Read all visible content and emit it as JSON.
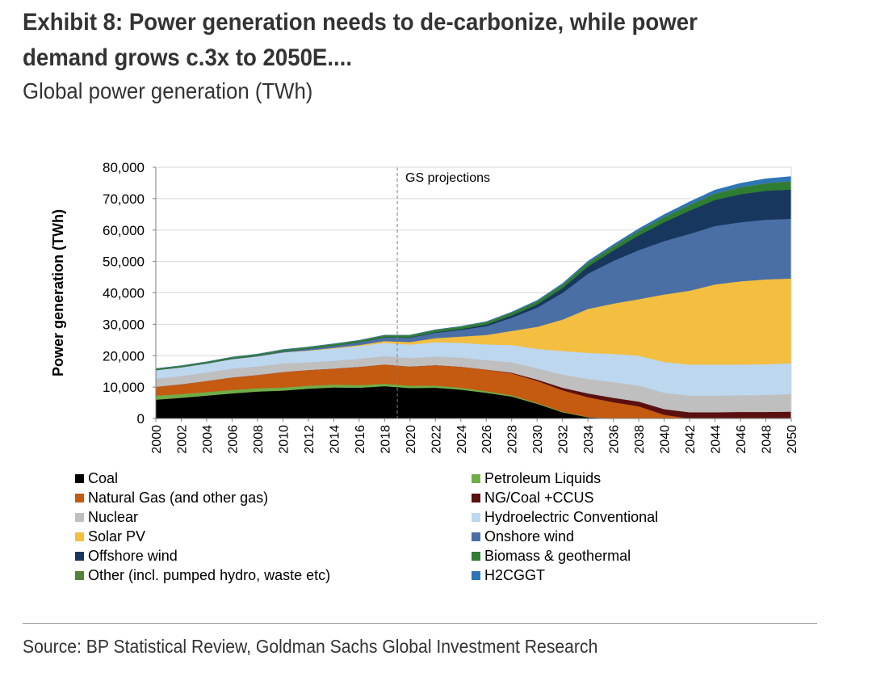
{
  "exhibit": {
    "title": "Exhibit 8: Power generation needs to de-carbonize, while power demand grows c.3x to 2050E....",
    "subtitle": "Global power generation (TWh)",
    "source": "Source: BP Statistical Review, Goldman Sachs Global Investment Research"
  },
  "chart_data": {
    "type": "area",
    "stacked": true,
    "ylabel": "Power generation (TWh)",
    "xlabel": "",
    "ylim": [
      0,
      80000
    ],
    "yticks": [
      0,
      10000,
      20000,
      30000,
      40000,
      50000,
      60000,
      70000,
      80000
    ],
    "ytick_labels": [
      "0",
      "10,000",
      "20,000",
      "30,000",
      "40,000",
      "50,000",
      "60,000",
      "70,000",
      "80,000"
    ],
    "xlim": [
      2000,
      2050
    ],
    "xticks": [
      2000,
      2002,
      2004,
      2006,
      2008,
      2010,
      2012,
      2014,
      2016,
      2018,
      2020,
      2022,
      2024,
      2026,
      2028,
      2030,
      2032,
      2034,
      2036,
      2038,
      2040,
      2042,
      2044,
      2046,
      2048,
      2050
    ],
    "annotation": {
      "text": "GS projections",
      "x": 2019
    },
    "grid": "horizontal",
    "legend_position": "bottom",
    "x": [
      2000,
      2002,
      2004,
      2006,
      2008,
      2010,
      2012,
      2014,
      2016,
      2018,
      2020,
      2022,
      2024,
      2026,
      2028,
      2030,
      2032,
      2034,
      2036,
      2038,
      2040,
      2042,
      2044,
      2046,
      2048,
      2050
    ],
    "series": [
      {
        "name": "Coal",
        "color": "#000000",
        "values": [
          6000,
          6600,
          7300,
          8000,
          8600,
          8900,
          9500,
          9900,
          9800,
          10300,
          9700,
          9800,
          9200,
          8200,
          7000,
          4700,
          2000,
          400,
          0,
          0,
          0,
          0,
          0,
          0,
          0,
          0
        ]
      },
      {
        "name": "Petroleum Liquids",
        "color": "#70AD47",
        "values": [
          1300,
          1200,
          1150,
          1100,
          1050,
          1000,
          950,
          900,
          850,
          800,
          750,
          700,
          600,
          500,
          400,
          300,
          200,
          100,
          0,
          0,
          0,
          0,
          0,
          0,
          0,
          0
        ]
      },
      {
        "name": "Natural Gas (and other gas)",
        "color": "#C55A11",
        "values": [
          2800,
          3100,
          3500,
          4000,
          4200,
          4900,
          5000,
          5100,
          5800,
          6100,
          6100,
          6500,
          6700,
          6900,
          7000,
          7000,
          6800,
          6300,
          5200,
          3900,
          1200,
          0,
          0,
          0,
          0,
          0
        ]
      },
      {
        "name": "NG/Coal +CCUS",
        "color": "#5B1010",
        "values": [
          0,
          0,
          0,
          0,
          0,
          0,
          0,
          0,
          0,
          0,
          0,
          0,
          0,
          0,
          200,
          400,
          800,
          1200,
          1400,
          1500,
          1800,
          2000,
          2000,
          2100,
          2100,
          2200
        ]
      },
      {
        "name": "Nuclear",
        "color": "#BFBFBF",
        "values": [
          2600,
          2650,
          2750,
          2800,
          2750,
          2750,
          2450,
          2500,
          2600,
          2700,
          2700,
          2800,
          2900,
          3000,
          3300,
          3600,
          4200,
          4600,
          5000,
          5100,
          5200,
          5300,
          5300,
          5300,
          5400,
          5600
        ]
      },
      {
        "name": "Hydroelectric Conventional",
        "color": "#BDD7EE",
        "values": [
          2700,
          2750,
          2800,
          3000,
          3200,
          3450,
          3700,
          3900,
          4050,
          4200,
          4300,
          4500,
          4700,
          5000,
          5500,
          6200,
          7500,
          8300,
          9000,
          9500,
          9800,
          9900,
          9900,
          9800,
          9800,
          9800
        ]
      },
      {
        "name": "Solar PV",
        "color": "#F4BE41",
        "values": [
          0,
          0,
          0,
          0,
          0,
          50,
          100,
          200,
          300,
          560,
          800,
          1300,
          2000,
          3000,
          4500,
          7000,
          10000,
          14000,
          16000,
          18000,
          21500,
          23500,
          25500,
          26500,
          27000,
          27000
        ]
      },
      {
        "name": "Onshore wind",
        "color": "#4A6FA5",
        "values": [
          30,
          60,
          100,
          150,
          200,
          330,
          500,
          650,
          850,
          1150,
          1400,
          1700,
          2100,
          2800,
          4200,
          6100,
          8500,
          11200,
          13600,
          15600,
          17000,
          18100,
          18600,
          18800,
          19000,
          19000
        ]
      },
      {
        "name": "Offshore wind",
        "color": "#17375E",
        "values": [
          0,
          0,
          0,
          0,
          0,
          10,
          20,
          30,
          40,
          70,
          100,
          200,
          300,
          500,
          700,
          1000,
          1500,
          2300,
          3300,
          4700,
          6000,
          7400,
          8300,
          8900,
          9200,
          9300
        ]
      },
      {
        "name": "Biomass & geothermal",
        "color": "#2E7D32",
        "values": [
          300,
          300,
          300,
          350,
          350,
          400,
          400,
          450,
          450,
          500,
          550,
          600,
          650,
          700,
          800,
          900,
          1000,
          1100,
          1200,
          1350,
          1500,
          1700,
          1900,
          2100,
          2300,
          2500
        ]
      },
      {
        "name": "Other (incl. pumped hydro, waste etc)",
        "color": "#548235",
        "values": [
          150,
          150,
          150,
          150,
          150,
          150,
          150,
          150,
          150,
          150,
          150,
          150,
          150,
          150,
          150,
          150,
          150,
          150,
          150,
          150,
          150,
          150,
          150,
          150,
          150,
          150
        ]
      },
      {
        "name": "H2CGGT",
        "color": "#2E75B6",
        "values": [
          0,
          0,
          0,
          0,
          0,
          0,
          0,
          0,
          0,
          0,
          0,
          0,
          50,
          100,
          150,
          250,
          350,
          450,
          550,
          650,
          800,
          950,
          1100,
          1250,
          1400,
          1500
        ]
      }
    ]
  }
}
